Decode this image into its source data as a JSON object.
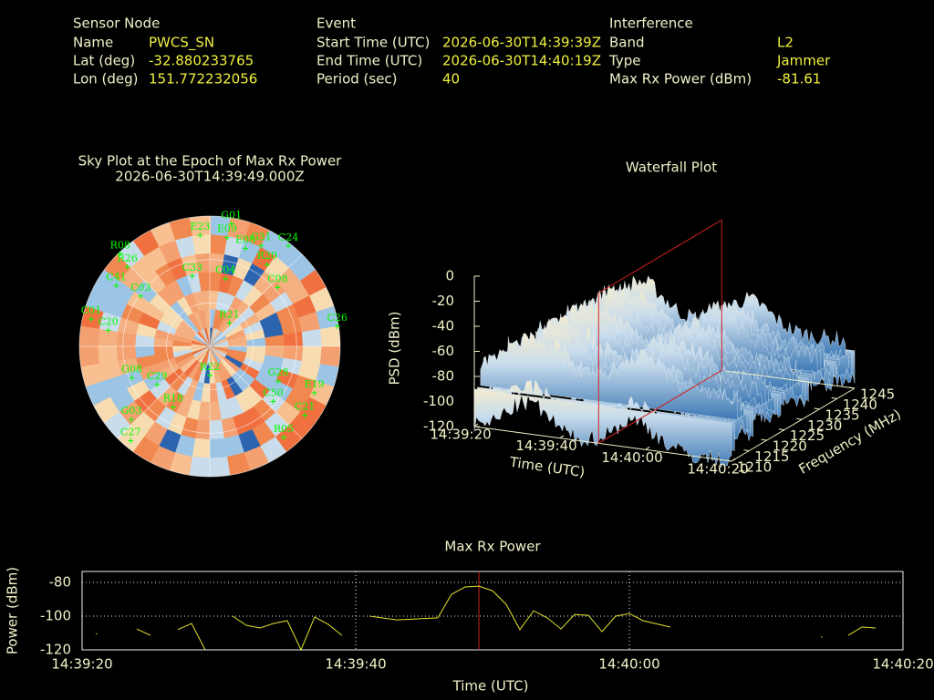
{
  "header": {
    "sections": [
      {
        "title": "Sensor Node",
        "fields": [
          {
            "label": "Name",
            "value": "PWCS_SN"
          },
          {
            "label": "Lat (deg)",
            "value": "-32.880233765"
          },
          {
            "label": "Lon (deg)",
            "value": "151.772232056"
          }
        ]
      },
      {
        "title": "Event",
        "fields": [
          {
            "label": "Start Time (UTC)",
            "value": "2026-06-30T14:39:39Z"
          },
          {
            "label": "End Time (UTC)",
            "value": "2026-06-30T14:40:19Z"
          },
          {
            "label": "Period (sec)",
            "value": "40"
          }
        ]
      },
      {
        "title": "Interference",
        "fields": [
          {
            "label": "Band",
            "value": "L2"
          },
          {
            "label": "Type",
            "value": "Jammer"
          },
          {
            "label": "Max Rx Power (dBm)",
            "value": "-81.61"
          }
        ]
      }
    ]
  },
  "chart_data": [
    {
      "type": "skyplot",
      "title": "Sky Plot at the Epoch of Max Rx Power",
      "subtitle": "2026-06-30T14:39:49.000Z",
      "color": "#00ff00",
      "satellites": [
        {
          "name": "C24",
          "azimuth": 38,
          "elevation": 2
        },
        {
          "name": "R08",
          "azimuth": 316,
          "elevation": 1
        },
        {
          "name": "R26",
          "azimuth": 314,
          "elevation": 11
        },
        {
          "name": "C41",
          "azimuth": 303,
          "elevation": 13
        },
        {
          "name": "C03",
          "azimuth": 306,
          "elevation": 31
        },
        {
          "name": "C01",
          "azimuth": 283,
          "elevation": 6
        },
        {
          "name": "C20",
          "azimuth": 279,
          "elevation": 19
        },
        {
          "name": "G08",
          "azimuth": 248,
          "elevation": 32
        },
        {
          "name": "G03",
          "azimuth": 227,
          "elevation": 16
        },
        {
          "name": "C27",
          "azimuth": 220,
          "elevation": 5
        },
        {
          "name": "C29",
          "azimuth": 234,
          "elevation": 45
        },
        {
          "name": "R18",
          "azimuth": 211,
          "elevation": 41
        },
        {
          "name": "R22",
          "azimuth": 180,
          "elevation": 70
        },
        {
          "name": "C04",
          "azimuth": 13,
          "elevation": 42
        },
        {
          "name": "E09",
          "azimuth": 9,
          "elevation": 14
        },
        {
          "name": "E08",
          "azimuth": 20,
          "elevation": 18
        },
        {
          "name": "G31",
          "azimuth": 27,
          "elevation": 12
        },
        {
          "name": "E23",
          "azimuth": 355,
          "elevation": 13
        },
        {
          "name": "G01",
          "azimuth": 10,
          "elevation": 4
        },
        {
          "name": "R20",
          "azimuth": 35,
          "elevation": 21
        },
        {
          "name": "C08",
          "azimuth": 49,
          "elevation": 28
        },
        {
          "name": "C26",
          "azimuth": 81,
          "elevation": 1
        },
        {
          "name": "R21",
          "azimuth": 40,
          "elevation": 69
        },
        {
          "name": "G28",
          "azimuth": 117,
          "elevation": 37
        },
        {
          "name": "C50",
          "azimuth": 131,
          "elevation": 32
        },
        {
          "name": "C21",
          "azimuth": 126,
          "elevation": 9
        },
        {
          "name": "R05",
          "azimuth": 141,
          "elevation": 9
        },
        {
          "name": "E19",
          "azimuth": 114,
          "elevation": 11
        },
        {
          "name": "C33",
          "azimuth": 346,
          "elevation": 40
        }
      ]
    },
    {
      "type": "surface",
      "title": "Waterfall Plot",
      "zlabel": "PSD (dBm)",
      "xlabel": "Time (UTC)",
      "ylabel": "Frequency (MHz)",
      "zlim": [
        -120,
        0
      ],
      "zticks": [
        0,
        -20,
        -40,
        -60,
        -80,
        -100,
        -120
      ],
      "xlim": [
        "14:39:20",
        "14:40:20"
      ],
      "xticks": [
        "14:39:20",
        "14:39:40",
        "14:40:00",
        "14:40:20"
      ],
      "ylim": [
        1210,
        1245
      ],
      "yticks": [
        1210,
        1215,
        1220,
        1225,
        1230,
        1235,
        1240,
        1245
      ],
      "marker_x": "14:39:49",
      "marker_color": "#d02020"
    },
    {
      "type": "line",
      "title": "Max Rx Power",
      "xlabel": "Time (UTC)",
      "ylabel": "Power (dBm)",
      "color": "#e0e030",
      "xlim": [
        "14:39:20",
        "14:40:20"
      ],
      "xticks": [
        "14:39:20",
        "14:39:40",
        "14:40:00",
        "14:40:20"
      ],
      "ylim": [
        -120,
        -73.5
      ],
      "yticks": [
        -80,
        -100,
        -120
      ],
      "grid": true,
      "marker_x": "14:39:49",
      "marker_color": "#d02020",
      "x": [
        "14:39:21",
        "14:39:22",
        "14:39:24",
        "14:39:25",
        "14:39:26",
        "14:39:27",
        "14:39:28",
        "14:39:29",
        "14:39:30",
        "14:39:31",
        "14:39:32",
        "14:39:33",
        "14:39:34",
        "14:39:35",
        "14:39:36",
        "14:39:37",
        "14:39:38",
        "14:39:39",
        "14:39:40",
        "14:39:41",
        "14:39:43",
        "14:39:46",
        "14:39:47",
        "14:39:48",
        "14:39:49",
        "14:39:50",
        "14:39:51",
        "14:39:52",
        "14:39:53",
        "14:39:54",
        "14:39:55",
        "14:39:56",
        "14:39:57",
        "14:39:58",
        "14:39:59",
        "14:40:00",
        "14:40:01",
        "14:40:03",
        "14:40:04",
        "14:40:14",
        "14:40:15",
        "14:40:16",
        "14:40:17",
        "14:40:18"
      ],
      "values": [
        -110.5,
        null,
        -107.6,
        -111.4,
        null,
        -108,
        -104.3,
        -120,
        null,
        -100,
        -105.4,
        -107,
        -104.3,
        -102.7,
        -120,
        -100.5,
        -104.9,
        -111.4,
        null,
        -100,
        -102.2,
        -101,
        -87,
        -82.7,
        -82.2,
        -84.9,
        -93,
        -108,
        -96.8,
        -101,
        -107.6,
        -99,
        -99.5,
        -109.2,
        -100,
        -98.4,
        -102.7,
        -106.5,
        null,
        -112.4,
        null,
        -111.4,
        -106.5,
        -107
      ]
    }
  ]
}
